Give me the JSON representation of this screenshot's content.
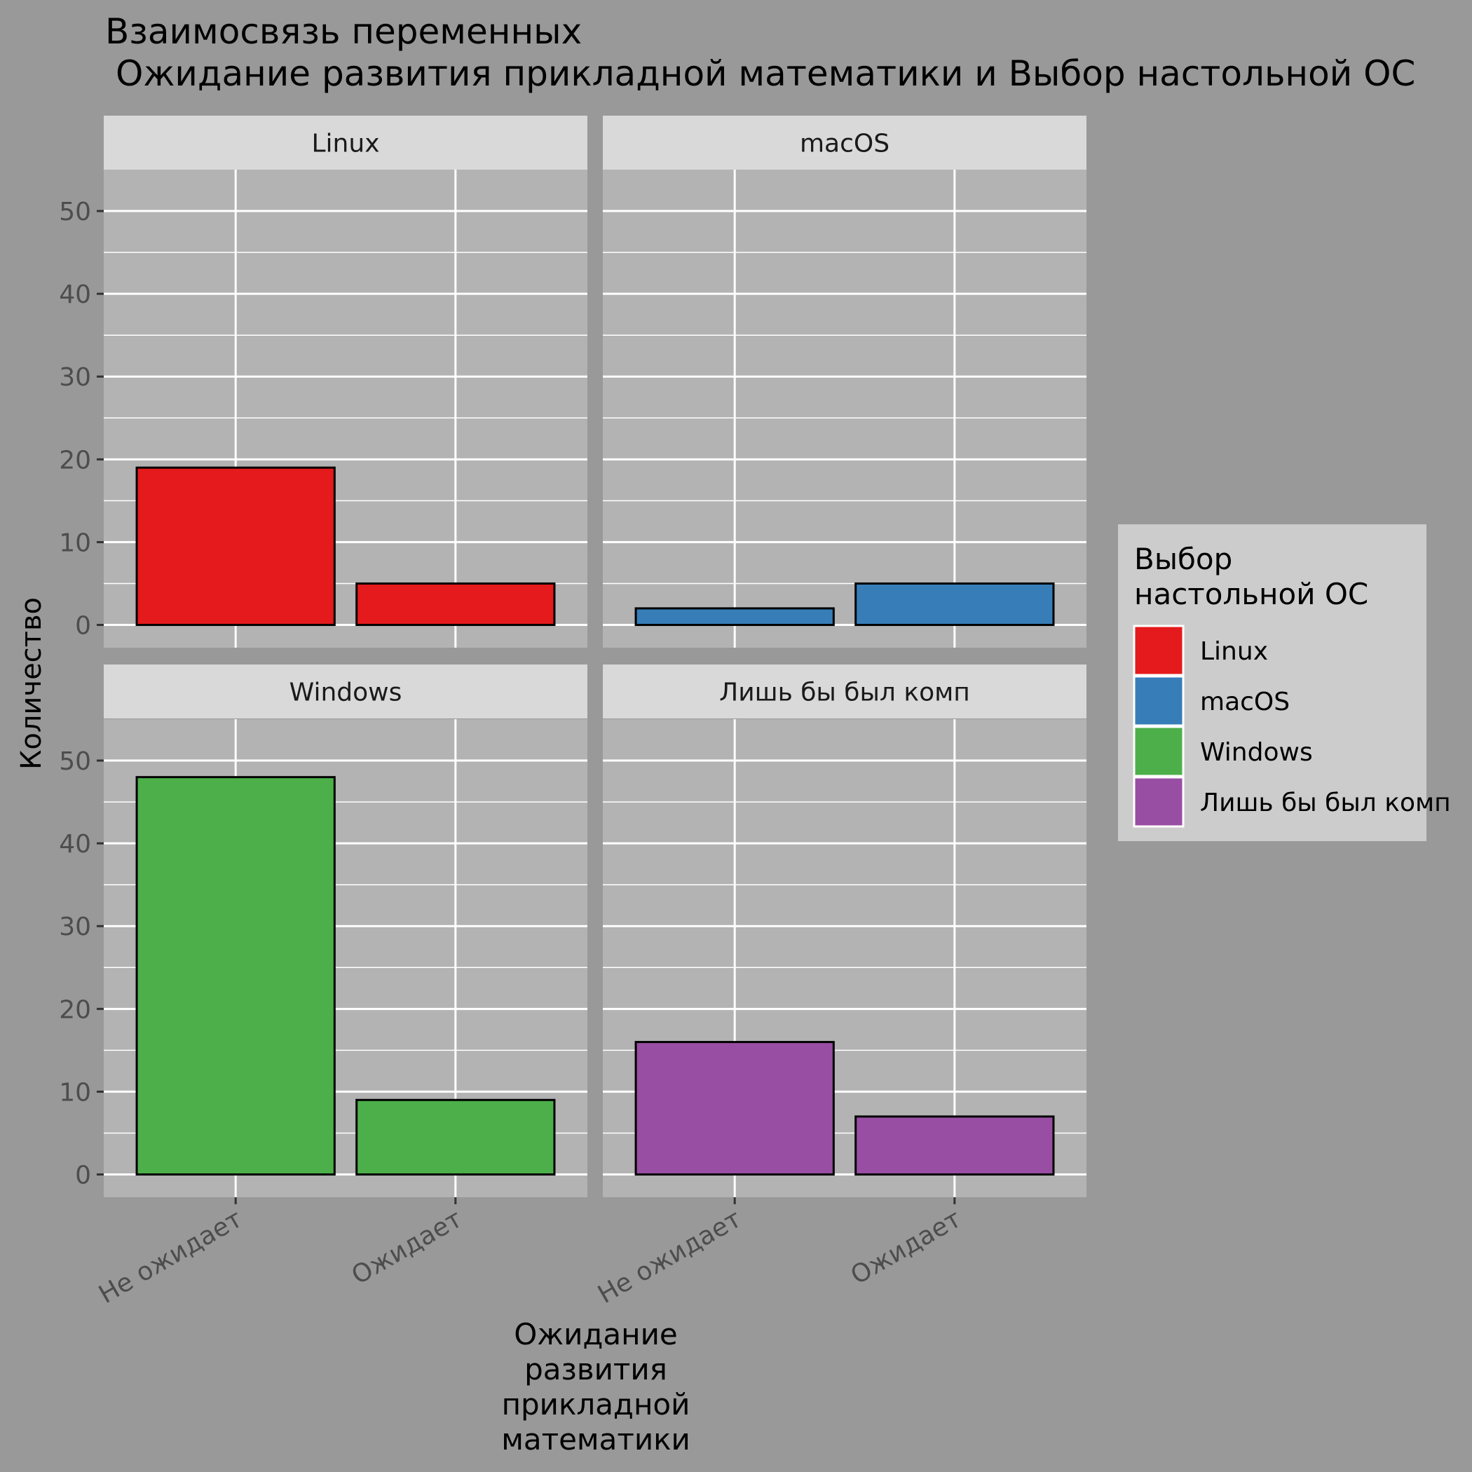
{
  "chart_data": {
    "type": "bar",
    "title_line1": "Взаимосвязь переменных",
    "title_line2": "Ожидание развития прикладной математики и Выбор настольной ОС",
    "xlabel_lines": [
      "Ожидание",
      "развития",
      "прикладной",
      "математики"
    ],
    "ylabel": "Количество",
    "ylim": [
      0,
      55
    ],
    "yticks": [
      0,
      10,
      20,
      30,
      40,
      50
    ],
    "categories": [
      "Не ожидает",
      "Ожидает"
    ],
    "grid": true,
    "legend_position": "right",
    "legend": {
      "title_lines": [
        "Выбор",
        "настольной ОС"
      ],
      "entries": [
        {
          "label": "Linux",
          "color": "#E41A1C"
        },
        {
          "label": "macOS",
          "color": "#377EB8"
        },
        {
          "label": "Windows",
          "color": "#4DAF4A"
        },
        {
          "label": "Лишь бы был комп",
          "color": "#984EA3"
        }
      ]
    },
    "facets": [
      {
        "name": "Linux",
        "color": "#E41A1C",
        "values": [
          19,
          5
        ]
      },
      {
        "name": "macOS",
        "color": "#377EB8",
        "values": [
          2,
          5
        ]
      },
      {
        "name": "Windows",
        "color": "#4DAF4A",
        "values": [
          48,
          9
        ]
      },
      {
        "name": "Лишь бы был комп",
        "color": "#984EA3",
        "values": [
          16,
          7
        ]
      }
    ]
  }
}
